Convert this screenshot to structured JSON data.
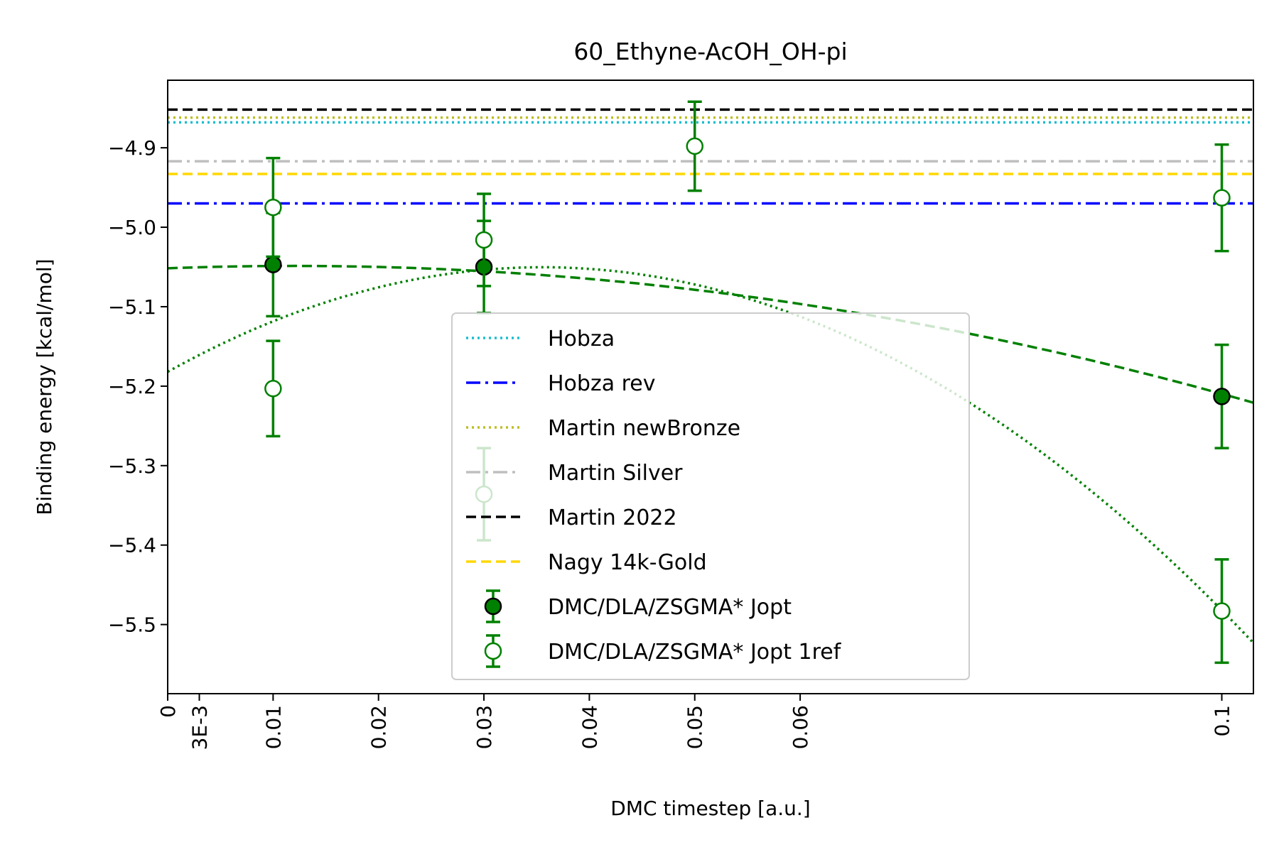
{
  "chart_data": {
    "type": "scatter",
    "title": "60_Ethyne-AcOH_OH-pi",
    "xlabel": "DMC timestep [a.u.]",
    "ylabel": "Binding energy [kcal/mol]",
    "xlim": [
      0,
      0.103
    ],
    "ylim": [
      -5.587,
      -4.815
    ],
    "x_ticks": [
      0,
      0.003,
      0.01,
      0.02,
      0.03,
      0.04,
      0.05,
      0.06,
      0.1
    ],
    "x_tick_labels": [
      "0",
      "3E-3",
      "0.01",
      "0.02",
      "0.03",
      "0.04",
      "0.05",
      "0.06",
      "0.1"
    ],
    "y_ticks": [
      -4.9,
      -5.0,
      -5.1,
      -5.2,
      -5.3,
      -5.4,
      -5.5
    ],
    "y_tick_labels": [
      "−4.9",
      "−5.0",
      "−5.1",
      "−5.2",
      "−5.3",
      "−5.4",
      "−5.5"
    ],
    "grid": false,
    "legend_position": "center",
    "reference_lines": [
      {
        "name": "Hobza",
        "value": -4.868,
        "color": "#17becf",
        "style": "dotted"
      },
      {
        "name": "Hobza rev",
        "value": -4.97,
        "color": "#0000ff",
        "style": "dashdot"
      },
      {
        "name": "Martin newBronze",
        "value": -4.862,
        "color": "#bcbd22",
        "style": "dotted"
      },
      {
        "name": "Martin Silver",
        "value": -4.917,
        "color": "#bfbfbf",
        "style": "dashdot"
      },
      {
        "name": "Martin 2022",
        "value": -4.852,
        "color": "#000000",
        "style": "dashed"
      },
      {
        "name": "Nagy 14k-Gold",
        "value": -4.933,
        "color": "#ffd700",
        "style": "dashed"
      }
    ],
    "series": [
      {
        "name": "DMC/DLA/ZSGMA* Jopt",
        "marker": "filled",
        "color": "#008000",
        "x": [
          0.01,
          0.03,
          0.1
        ],
        "y": [
          -5.047,
          -5.05,
          -5.213
        ],
        "err": [
          0.065,
          0.058,
          0.065
        ]
      },
      {
        "name": "DMC/DLA/ZSGMA* Jopt 1ref",
        "marker": "open",
        "color": "#008000",
        "x": [
          0.01,
          0.01,
          0.03,
          0.03,
          0.05,
          0.1,
          0.1
        ],
        "y": [
          -4.975,
          -5.203,
          -5.016,
          -5.336,
          -4.898,
          -4.963,
          -5.483
        ],
        "err": [
          0.062,
          0.06,
          0.058,
          0.058,
          0.056,
          0.067,
          0.065
        ]
      }
    ],
    "fits": [
      {
        "style": "dashed",
        "color": "#008000",
        "x": [
          0,
          0.103
        ],
        "coeffs": [
          -5.0517,
          0.5,
          -20.8
        ]
      },
      {
        "style": "dotted",
        "color": "#008000",
        "x": [
          0,
          0.103
        ],
        "coeffs": [
          -5.182,
          7.4,
          -104
        ]
      }
    ]
  }
}
